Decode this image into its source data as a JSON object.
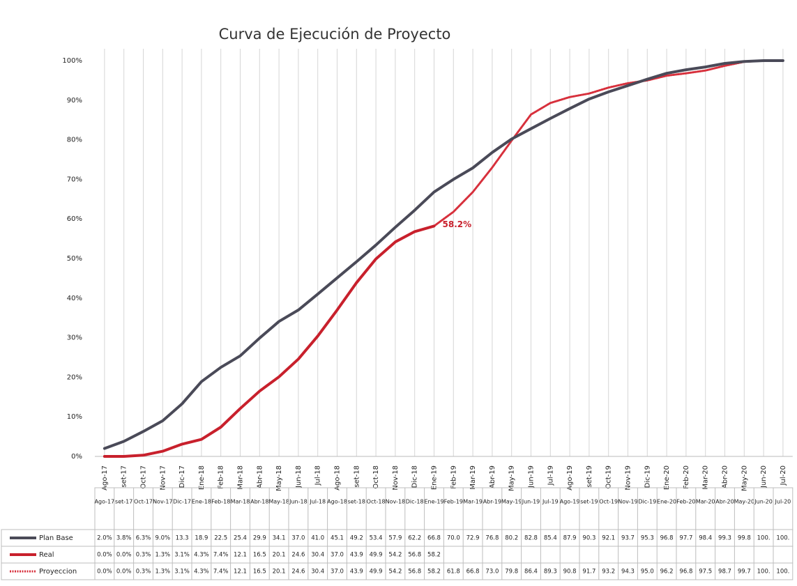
{
  "chart_data": {
    "type": "line",
    "title": "Curva de Ejecución de Proyecto",
    "categories": [
      "Ago-17",
      "set-17",
      "Oct-17",
      "Nov-17",
      "Dic-17",
      "Ene-18",
      "Feb-18",
      "Mar-18",
      "Abr-18",
      "May-18",
      "Jun-18",
      "Jul-18",
      "Ago-18",
      "set-18",
      "Oct-18",
      "Nov-18",
      "Dic-18",
      "Ene-19",
      "Feb-19",
      "Mar-19",
      "Abr-19",
      "May-19",
      "Jun-19",
      "Jul-19",
      "Ago-19",
      "set-19",
      "Oct-19",
      "Nov-19",
      "Dic-19",
      "Ene-20",
      "Feb-20",
      "Mar-20",
      "Abr-20",
      "May-20",
      "Jun-20",
      "Jul-20"
    ],
    "series": [
      {
        "name": "Plan Base",
        "color": "#4a4a58",
        "line_style": "solid",
        "values": [
          2.0,
          3.8,
          6.3,
          9.0,
          13.3,
          18.9,
          22.5,
          25.4,
          29.9,
          34.1,
          37.0,
          41.0,
          45.1,
          49.2,
          53.4,
          57.9,
          62.2,
          66.8,
          70.0,
          72.9,
          76.8,
          80.2,
          82.8,
          85.4,
          87.9,
          90.3,
          92.1,
          93.7,
          95.3,
          96.8,
          97.7,
          98.4,
          99.3,
          99.8,
          100,
          100
        ],
        "value_labels": [
          "2.0%",
          "3.8%",
          "6.3%",
          "9.0%",
          "13.3",
          "18.9",
          "22.5",
          "25.4",
          "29.9",
          "34.1",
          "37.0",
          "41.0",
          "45.1",
          "49.2",
          "53.4",
          "57.9",
          "62.2",
          "66.8",
          "70.0",
          "72.9",
          "76.8",
          "80.2",
          "82.8",
          "85.4",
          "87.9",
          "90.3",
          "92.1",
          "93.7",
          "95.3",
          "96.8",
          "97.7",
          "98.4",
          "99.3",
          "99.8",
          "100.",
          "100."
        ]
      },
      {
        "name": "Real",
        "color": "#c8202c",
        "line_style": "solid",
        "values": [
          0.0,
          0.0,
          0.3,
          1.3,
          3.1,
          4.3,
          7.4,
          12.1,
          16.5,
          20.1,
          24.6,
          30.4,
          37.0,
          43.9,
          49.9,
          54.2,
          56.8,
          58.2,
          null,
          null,
          null,
          null,
          null,
          null,
          null,
          null,
          null,
          null,
          null,
          null,
          null,
          null,
          null,
          null,
          null,
          null
        ],
        "value_labels": [
          "0.0%",
          "0.0%",
          "0.3%",
          "1.3%",
          "3.1%",
          "4.3%",
          "7.4%",
          "12.1",
          "16.5",
          "20.1",
          "24.6",
          "30.4",
          "37.0",
          "43.9",
          "49.9",
          "54.2",
          "56.8",
          "58.2",
          null,
          null,
          null,
          null,
          null,
          null,
          null,
          null,
          null,
          null,
          null,
          null,
          null,
          null,
          null,
          null,
          null,
          null
        ]
      },
      {
        "name": "Proyeccion",
        "color": "#d7303c",
        "line_style": "dotted",
        "values": [
          0.0,
          0.0,
          0.3,
          1.3,
          3.1,
          4.3,
          7.4,
          12.1,
          16.5,
          20.1,
          24.6,
          30.4,
          37.0,
          43.9,
          49.9,
          54.2,
          56.8,
          58.2,
          61.8,
          66.8,
          73.0,
          79.8,
          86.4,
          89.3,
          90.8,
          91.7,
          93.2,
          94.3,
          95.0,
          96.2,
          96.8,
          97.5,
          98.7,
          99.7,
          100,
          100
        ],
        "value_labels": [
          "0.0%",
          "0.0%",
          "0.3%",
          "1.3%",
          "3.1%",
          "4.3%",
          "7.4%",
          "12.1",
          "16.5",
          "20.1",
          "24.6",
          "30.4",
          "37.0",
          "43.9",
          "49.9",
          "54.2",
          "56.8",
          "58.2",
          "61.8",
          "66.8",
          "73.0",
          "79.8",
          "86.4",
          "89.3",
          "90.8",
          "91.7",
          "93.2",
          "94.3",
          "95.0",
          "96.2",
          "96.8",
          "97.5",
          "98.7",
          "99.7",
          "100.",
          "100."
        ]
      }
    ],
    "annotation": {
      "text": "58.2%",
      "series": 1,
      "index": 17
    },
    "ylim": [
      0,
      103
    ],
    "yticks": [
      {
        "value": 0,
        "label": "0%"
      },
      {
        "value": 10,
        "label": "10%"
      },
      {
        "value": 20,
        "label": "20%"
      },
      {
        "value": 30,
        "label": "30%"
      },
      {
        "value": 40,
        "label": "40%"
      },
      {
        "value": 50,
        "label": "50%"
      },
      {
        "value": 60,
        "label": "60%"
      },
      {
        "value": 70,
        "label": "70%"
      },
      {
        "value": 80,
        "label": "80%"
      },
      {
        "value": 90,
        "label": "90%"
      },
      {
        "value": 100,
        "label": "100%"
      }
    ],
    "grid": "x",
    "legend": "table"
  }
}
